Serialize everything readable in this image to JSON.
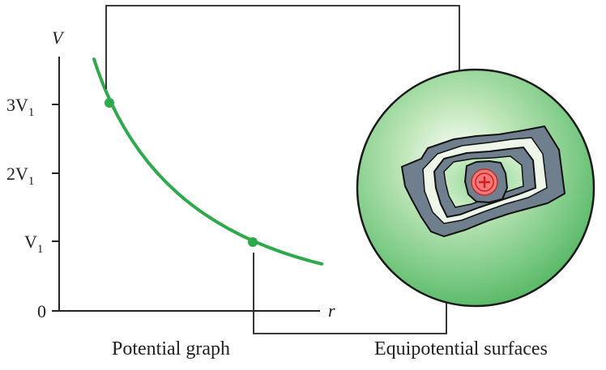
{
  "graph": {
    "y_axis_label": "V",
    "x_axis_label": "r",
    "y_ticks": [
      {
        "base": "3V",
        "sub": "1"
      },
      {
        "base": "2V",
        "sub": "1"
      },
      {
        "base": "V",
        "sub": "1"
      },
      {
        "base": "0",
        "sub": ""
      }
    ]
  },
  "captions": {
    "left": "Potential graph",
    "right": "Equipotential surfaces"
  },
  "charge": {
    "sign": "+"
  },
  "colors": {
    "curve": "#2eaa4c",
    "sphere": "#5cc06a",
    "surface": "#6f7f8e",
    "charge": "#f07a7a",
    "charge_sign": "#d01f1f"
  }
}
